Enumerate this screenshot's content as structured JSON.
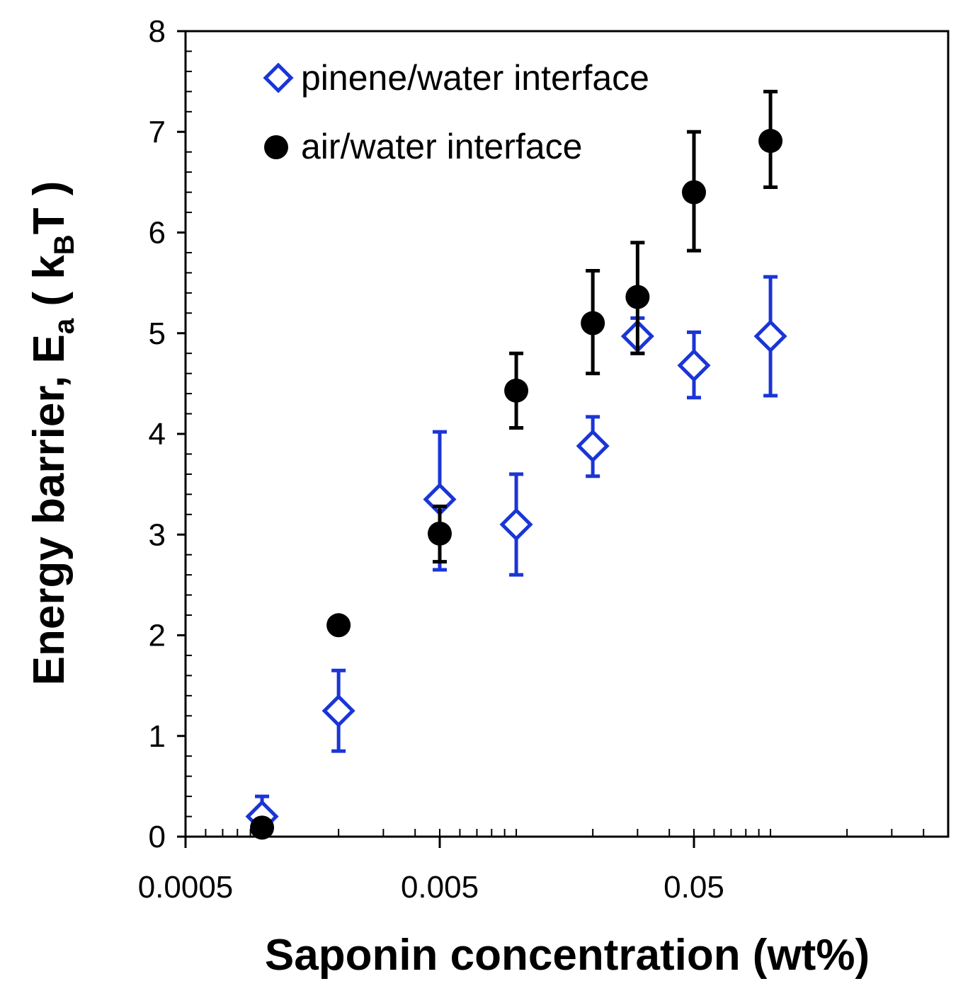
{
  "chart_data": {
    "type": "scatter",
    "xscale": "log",
    "xlim": [
      0.0005,
      0.5
    ],
    "ylim": [
      0,
      8
    ],
    "xlabel": "Saponin concentration (wt%)",
    "ylabel": {
      "prefix": "Energy barrier, E",
      "prefix_sub": "a",
      "unit_open": " ( k",
      "unit_sub": "B",
      "unit_close": "T )"
    },
    "x_tick_labels": [
      {
        "value": 0.0005,
        "label": "0.0005"
      },
      {
        "value": 0.005,
        "label": "0.005"
      },
      {
        "value": 0.05,
        "label": "0.05"
      }
    ],
    "y_ticks": [
      0,
      1,
      2,
      3,
      4,
      5,
      6,
      7,
      8
    ],
    "series": [
      {
        "name": "pinene/water interface",
        "marker": "diamond-open",
        "color": "#1a35d6",
        "points": [
          {
            "x": 0.001,
            "y": 0.2,
            "err_low": 0.1,
            "err_high": 0.4
          },
          {
            "x": 0.002,
            "y": 1.25,
            "err_low": 0.85,
            "err_high": 1.65
          },
          {
            "x": 0.005,
            "y": 3.35,
            "err_low": 2.65,
            "err_high": 4.02
          },
          {
            "x": 0.01,
            "y": 3.1,
            "err_low": 2.6,
            "err_high": 3.6
          },
          {
            "x": 0.02,
            "y": 3.88,
            "err_low": 3.58,
            "err_high": 4.17
          },
          {
            "x": 0.03,
            "y": 4.97,
            "err_low": 4.8,
            "err_high": 5.15
          },
          {
            "x": 0.05,
            "y": 4.68,
            "err_low": 4.36,
            "err_high": 5.01
          },
          {
            "x": 0.1,
            "y": 4.97,
            "err_low": 4.38,
            "err_high": 5.56
          }
        ]
      },
      {
        "name": "air/water interface",
        "marker": "circle-filled",
        "color": "#000000",
        "points": [
          {
            "x": 0.001,
            "y": 0.09,
            "err_low": null,
            "err_high": null
          },
          {
            "x": 0.002,
            "y": 2.1,
            "err_low": null,
            "err_high": null
          },
          {
            "x": 0.005,
            "y": 3.01,
            "err_low": 2.73,
            "err_high": 3.28
          },
          {
            "x": 0.01,
            "y": 4.43,
            "err_low": 4.06,
            "err_high": 4.8
          },
          {
            "x": 0.02,
            "y": 5.1,
            "err_low": 4.6,
            "err_high": 5.62
          },
          {
            "x": 0.03,
            "y": 5.36,
            "err_low": 4.8,
            "err_high": 5.9
          },
          {
            "x": 0.05,
            "y": 6.4,
            "err_low": 5.82,
            "err_high": 7.0
          },
          {
            "x": 0.1,
            "y": 6.91,
            "err_low": 6.45,
            "err_high": 7.4
          }
        ]
      }
    ],
    "legend": {
      "placement": "top-left"
    }
  }
}
